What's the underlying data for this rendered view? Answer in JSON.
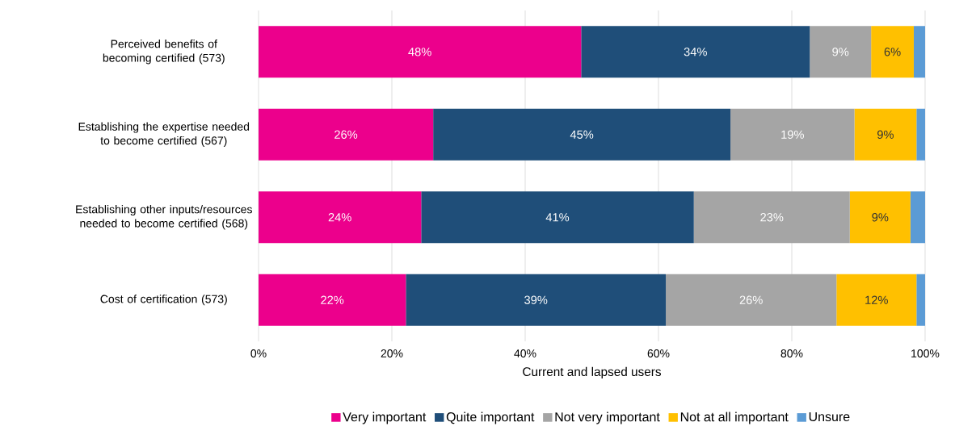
{
  "chart_data": {
    "type": "bar",
    "orientation": "horizontal",
    "stacked": true,
    "categories": [
      "Perceived benefits of becoming certified (573)",
      "Establishing the expertise needed to become certified (567)",
      "Establishing other inputs/resources needed to become certified (568)",
      "Cost of certification (573)"
    ],
    "series": [
      {
        "name": "Very important",
        "color": "#ec008c",
        "values": [
          48.4,
          26.2,
          24.4,
          22.1
        ],
        "value_labels": [
          "48%",
          "26%",
          "24%",
          "22%"
        ]
      },
      {
        "name": "Quite important",
        "color": "#1f4e79",
        "values": [
          34.3,
          44.6,
          40.9,
          39.0
        ],
        "value_labels": [
          "34%",
          "45%",
          "41%",
          "39%"
        ]
      },
      {
        "name": "Not very important",
        "color": "#a5a5a5",
        "values": [
          9.2,
          18.6,
          23.4,
          25.6
        ],
        "value_labels": [
          "9%",
          "19%",
          "23%",
          "26%"
        ]
      },
      {
        "name": "Not at all important",
        "color": "#ffc000",
        "values": [
          6.4,
          9.3,
          9.1,
          12.0
        ],
        "value_labels": [
          "6%",
          "9%",
          "9%",
          "12%"
        ]
      },
      {
        "name": "Unsure",
        "color": "#5b9bd5",
        "values": [
          1.7,
          1.3,
          2.2,
          1.3
        ],
        "value_labels": [
          null,
          null,
          null,
          null
        ]
      }
    ],
    "xlabel": "Current and lapsed users",
    "xlim": [
      0,
      100
    ],
    "xticks": [
      {
        "value": 0,
        "label": "0%"
      },
      {
        "value": 20,
        "label": "20%"
      },
      {
        "value": 40,
        "label": "40%"
      },
      {
        "value": 60,
        "label": "60%"
      },
      {
        "value": 80,
        "label": "80%"
      },
      {
        "value": 100,
        "label": "100%"
      }
    ],
    "grid": "x",
    "legend": "bottom"
  }
}
